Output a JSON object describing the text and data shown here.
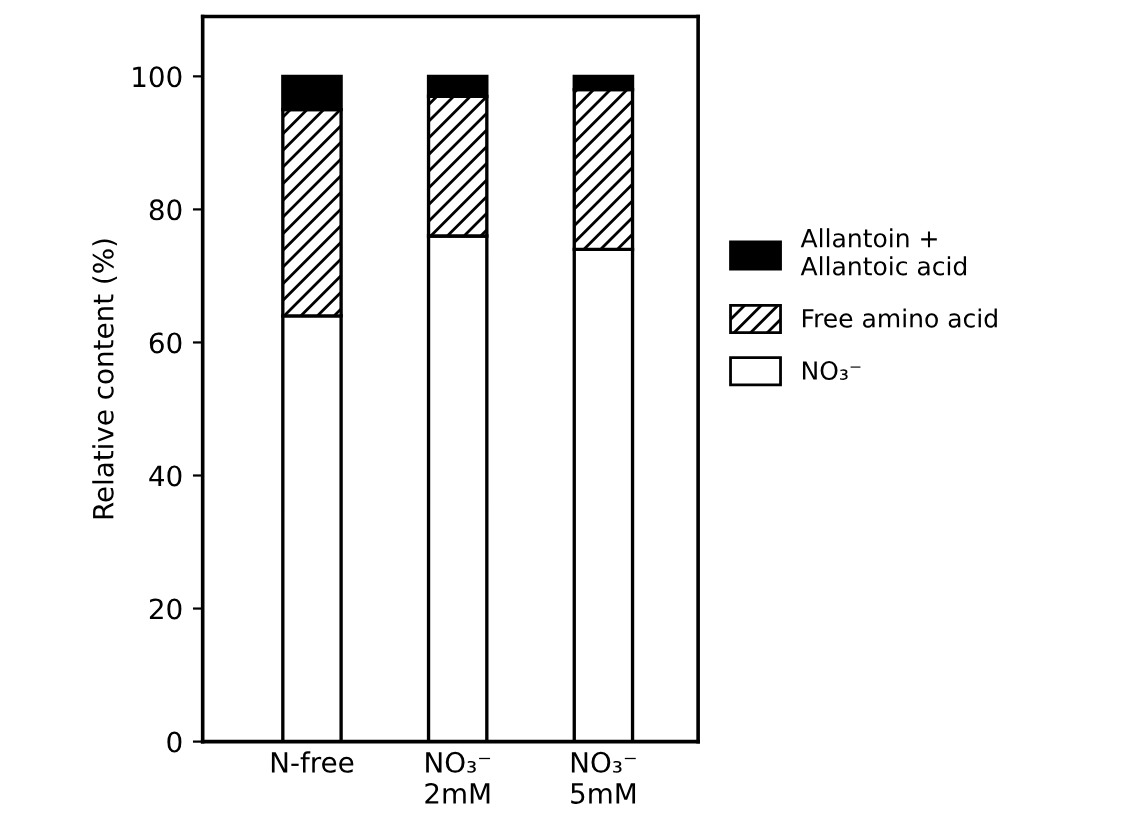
{
  "chart_data": {
    "type": "bar",
    "stacked": true,
    "ylabel": "Relative content (%)",
    "categories": [
      "N-free",
      "NO₃⁻\n2mM",
      "NO₃⁻\n5mM"
    ],
    "series": [
      {
        "name": "NO₃⁻",
        "color": "#ffffff",
        "values": [
          64,
          76,
          74
        ]
      },
      {
        "name": "Free amino acid",
        "color": "#000000",
        "values": [
          31,
          21,
          24
        ]
      },
      {
        "name": "Allantoin +\nAllantoic acid",
        "color": "#000000",
        "values": [
          5,
          3,
          2
        ]
      }
    ],
    "ylim": [
      0,
      109
    ],
    "yticks": [
      0,
      20,
      40,
      60,
      80,
      100
    ],
    "grid": false,
    "legend": "right"
  }
}
